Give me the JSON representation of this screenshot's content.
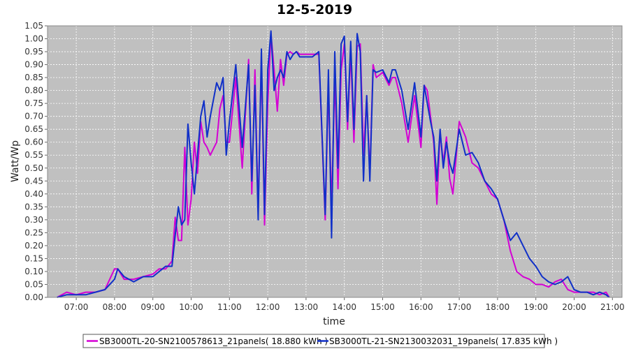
{
  "chart_data": {
    "type": "line",
    "title": "12-5-2019",
    "xlabel": "time",
    "ylabel": "Watt/Wp",
    "xlim": [
      "06:15",
      "21:15"
    ],
    "ylim": [
      0.0,
      1.05
    ],
    "grid": true,
    "legend_position": "bottom",
    "x_ticks": [
      "07:00",
      "08:00",
      "09:00",
      "10:00",
      "11:00",
      "12:00",
      "13:00",
      "14:00",
      "15:00",
      "16:00",
      "17:00",
      "18:00",
      "19:00",
      "20:00",
      "21:00"
    ],
    "y_ticks": [
      "0.00",
      "0.05",
      "0.10",
      "0.15",
      "0.20",
      "0.25",
      "0.30",
      "0.35",
      "0.40",
      "0.45",
      "0.50",
      "0.55",
      "0.60",
      "0.65",
      "0.70",
      "0.75",
      "0.80",
      "0.85",
      "0.90",
      "0.95",
      "1.00",
      "1.05"
    ],
    "series": [
      {
        "name": "SB3000TL-20-SN2100578613_21panels( 18.880 kWh )",
        "color": "#d400d4",
        "x": [
          "06:30",
          "06:45",
          "07:00",
          "07:15",
          "07:30",
          "07:45",
          "08:00",
          "08:05",
          "08:15",
          "08:30",
          "08:45",
          "09:00",
          "09:10",
          "09:20",
          "09:30",
          "09:35",
          "09:40",
          "09:45",
          "09:50",
          "09:55",
          "10:00",
          "10:05",
          "10:10",
          "10:15",
          "10:20",
          "10:25",
          "10:30",
          "10:40",
          "10:45",
          "10:50",
          "10:55",
          "11:00",
          "11:10",
          "11:20",
          "11:30",
          "11:35",
          "11:40",
          "11:45",
          "11:50",
          "11:55",
          "12:00",
          "12:05",
          "12:10",
          "12:15",
          "12:20",
          "12:25",
          "12:30",
          "12:35",
          "12:40",
          "12:45",
          "12:50",
          "13:00",
          "13:10",
          "13:20",
          "13:30",
          "13:35",
          "13:40",
          "13:45",
          "13:50",
          "13:55",
          "14:00",
          "14:05",
          "14:10",
          "14:15",
          "14:20",
          "14:25",
          "14:30",
          "14:35",
          "14:40",
          "14:45",
          "14:50",
          "15:00",
          "15:10",
          "15:15",
          "15:20",
          "15:30",
          "15:40",
          "15:50",
          "16:00",
          "16:05",
          "16:10",
          "16:15",
          "16:20",
          "16:25",
          "16:30",
          "16:35",
          "16:40",
          "16:45",
          "16:50",
          "17:00",
          "17:10",
          "17:20",
          "17:30",
          "17:40",
          "17:50",
          "18:00",
          "18:10",
          "18:20",
          "18:30",
          "18:40",
          "18:50",
          "19:00",
          "19:10",
          "19:20",
          "19:30",
          "19:40",
          "19:50",
          "20:00",
          "20:10",
          "20:20",
          "20:30",
          "20:40",
          "20:50",
          "20:55"
        ],
        "y": [
          0.0,
          0.02,
          0.01,
          0.02,
          0.02,
          0.03,
          0.11,
          0.11,
          0.07,
          0.07,
          0.08,
          0.09,
          0.11,
          0.11,
          0.14,
          0.31,
          0.22,
          0.22,
          0.58,
          0.28,
          0.38,
          0.6,
          0.48,
          0.68,
          0.6,
          0.58,
          0.55,
          0.6,
          0.73,
          0.78,
          0.6,
          0.6,
          0.85,
          0.5,
          0.92,
          0.4,
          0.88,
          0.33,
          0.92,
          0.28,
          0.75,
          1.02,
          0.88,
          0.72,
          0.92,
          0.82,
          0.94,
          0.95,
          0.94,
          0.95,
          0.94,
          0.94,
          0.94,
          0.94,
          0.3,
          0.82,
          0.35,
          0.85,
          0.42,
          0.88,
          0.98,
          0.65,
          0.95,
          0.6,
          0.97,
          0.98,
          0.55,
          0.78,
          0.48,
          0.9,
          0.85,
          0.87,
          0.82,
          0.85,
          0.85,
          0.75,
          0.6,
          0.78,
          0.58,
          0.82,
          0.8,
          0.7,
          0.6,
          0.36,
          0.64,
          0.52,
          0.62,
          0.46,
          0.4,
          0.68,
          0.62,
          0.52,
          0.5,
          0.45,
          0.4,
          0.38,
          0.3,
          0.18,
          0.1,
          0.08,
          0.07,
          0.05,
          0.05,
          0.04,
          0.06,
          0.07,
          0.03,
          0.02,
          0.02,
          0.02,
          0.02,
          0.01,
          0.02,
          0.0
        ]
      },
      {
        "name": "SB3000TL-21-SN2130032031_19panels( 17.835 kWh )",
        "color": "#1030c8",
        "x": [
          "06:30",
          "06:45",
          "07:00",
          "07:15",
          "07:30",
          "07:45",
          "08:00",
          "08:05",
          "08:15",
          "08:30",
          "08:45",
          "09:00",
          "09:10",
          "09:20",
          "09:30",
          "09:35",
          "09:40",
          "09:45",
          "09:50",
          "09:55",
          "10:00",
          "10:05",
          "10:10",
          "10:15",
          "10:20",
          "10:25",
          "10:30",
          "10:40",
          "10:45",
          "10:50",
          "10:55",
          "11:00",
          "11:10",
          "11:20",
          "11:30",
          "11:35",
          "11:40",
          "11:45",
          "11:50",
          "11:55",
          "12:00",
          "12:05",
          "12:10",
          "12:15",
          "12:20",
          "12:25",
          "12:30",
          "12:35",
          "12:40",
          "12:45",
          "12:50",
          "13:00",
          "13:10",
          "13:20",
          "13:30",
          "13:35",
          "13:40",
          "13:45",
          "13:50",
          "13:55",
          "14:00",
          "14:05",
          "14:10",
          "14:15",
          "14:20",
          "14:25",
          "14:30",
          "14:35",
          "14:40",
          "14:45",
          "14:50",
          "15:00",
          "15:10",
          "15:15",
          "15:20",
          "15:30",
          "15:40",
          "15:50",
          "16:00",
          "16:05",
          "16:10",
          "16:15",
          "16:20",
          "16:25",
          "16:30",
          "16:35",
          "16:40",
          "16:45",
          "16:50",
          "17:00",
          "17:10",
          "17:20",
          "17:30",
          "17:40",
          "17:50",
          "18:00",
          "18:10",
          "18:20",
          "18:30",
          "18:40",
          "18:50",
          "19:00",
          "19:10",
          "19:20",
          "19:30",
          "19:40",
          "19:50",
          "20:00",
          "20:10",
          "20:20",
          "20:30",
          "20:40",
          "20:50",
          "20:55"
        ],
        "y": [
          0.0,
          0.01,
          0.01,
          0.01,
          0.02,
          0.03,
          0.07,
          0.11,
          0.08,
          0.06,
          0.08,
          0.08,
          0.1,
          0.12,
          0.12,
          0.24,
          0.35,
          0.28,
          0.3,
          0.67,
          0.52,
          0.4,
          0.55,
          0.7,
          0.76,
          0.62,
          0.7,
          0.83,
          0.8,
          0.85,
          0.55,
          0.68,
          0.9,
          0.58,
          0.9,
          0.45,
          0.82,
          0.3,
          0.96,
          0.32,
          0.88,
          1.03,
          0.8,
          0.85,
          0.88,
          0.85,
          0.95,
          0.92,
          0.94,
          0.95,
          0.93,
          0.93,
          0.93,
          0.95,
          0.32,
          0.88,
          0.23,
          0.95,
          0.5,
          0.98,
          1.01,
          0.68,
          0.99,
          0.65,
          1.02,
          0.95,
          0.45,
          0.78,
          0.45,
          0.88,
          0.87,
          0.88,
          0.83,
          0.88,
          0.88,
          0.8,
          0.65,
          0.83,
          0.62,
          0.82,
          0.75,
          0.68,
          0.62,
          0.45,
          0.65,
          0.5,
          0.6,
          0.52,
          0.48,
          0.65,
          0.55,
          0.56,
          0.52,
          0.45,
          0.42,
          0.38,
          0.3,
          0.22,
          0.25,
          0.2,
          0.15,
          0.12,
          0.08,
          0.06,
          0.05,
          0.06,
          0.08,
          0.03,
          0.02,
          0.02,
          0.01,
          0.02,
          0.01,
          0.0
        ]
      }
    ]
  }
}
